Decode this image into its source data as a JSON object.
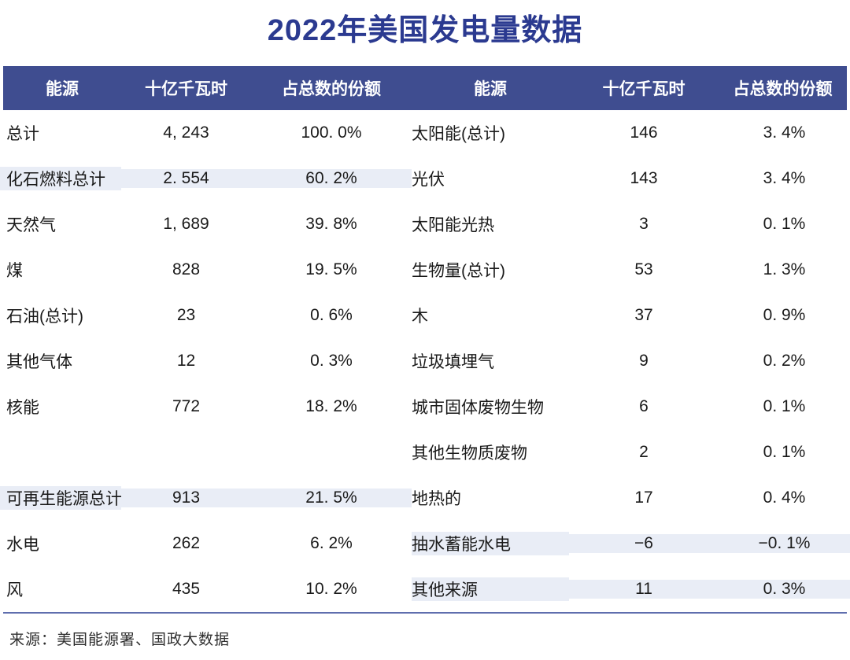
{
  "title": "2022年美国发电量数据",
  "colors": {
    "title_text": "#2b3a90",
    "header_bg": "#3f4d90",
    "header_text": "#ffffff",
    "row_highlight_bg": "#e9edf6",
    "body_text": "#1a1a1a",
    "bottom_rule": "#5f6eae"
  },
  "table": {
    "headers_left": {
      "energy": "能源",
      "value": "十亿千瓦时",
      "share": "占总数的份额"
    },
    "headers_right": {
      "energy": "能源",
      "value": "十亿千瓦时",
      "share": "占总数的份额"
    },
    "rows": [
      {
        "left": {
          "label": "总计",
          "value": "4, 243",
          "share": "100. 0%",
          "highlight": false
        },
        "right": {
          "label": "太阳能(总计)",
          "value": "146",
          "share": "3. 4%",
          "highlight": false
        }
      },
      {
        "left": {
          "label": "化石燃料总计",
          "value": "2. 554",
          "share": "60. 2%",
          "highlight": true
        },
        "right": {
          "label": "光伏",
          "value": "143",
          "share": "3. 4%",
          "highlight": false
        }
      },
      {
        "left": {
          "label": "天然气",
          "value": "1, 689",
          "share": "39. 8%",
          "highlight": false
        },
        "right": {
          "label": "太阳能光热",
          "value": "3",
          "share": "0. 1%",
          "highlight": false
        }
      },
      {
        "left": {
          "label": "煤",
          "value": "828",
          "share": "19. 5%",
          "highlight": false
        },
        "right": {
          "label": "生物量(总计)",
          "value": "53",
          "share": "1. 3%",
          "highlight": false
        }
      },
      {
        "left": {
          "label": "石油(总计)",
          "value": "23",
          "share": "0. 6%",
          "highlight": false
        },
        "right": {
          "label": "木",
          "value": "37",
          "share": "0. 9%",
          "highlight": false
        }
      },
      {
        "left": {
          "label": "其他气体",
          "value": "12",
          "share": "0. 3%",
          "highlight": false
        },
        "right": {
          "label": "垃圾填埋气",
          "value": "9",
          "share": "0. 2%",
          "highlight": false
        }
      },
      {
        "left": {
          "label": "核能",
          "value": "772",
          "share": "18. 2%",
          "highlight": false
        },
        "right": {
          "label": "城市固体废物生物",
          "value": "6",
          "share": "0. 1%",
          "highlight": false
        }
      },
      {
        "left": {
          "label": "",
          "value": "",
          "share": "",
          "highlight": false
        },
        "right": {
          "label": "其他生物质废物",
          "value": "2",
          "share": "0. 1%",
          "highlight": false
        }
      },
      {
        "left": {
          "label": "可再生能源总计",
          "value": "913",
          "share": "21. 5%",
          "highlight": true
        },
        "right": {
          "label": "地热的",
          "value": "17",
          "share": "0. 4%",
          "highlight": false
        }
      },
      {
        "left": {
          "label": "水电",
          "value": "262",
          "share": "6. 2%",
          "highlight": false
        },
        "right": {
          "label": "抽水蓄能水电",
          "value": "−6",
          "share": "−0. 1%",
          "highlight": true
        }
      },
      {
        "left": {
          "label": "风",
          "value": "435",
          "share": "10. 2%",
          "highlight": false
        },
        "right": {
          "label": "其他来源",
          "value": "11",
          "share": "0. 3%",
          "highlight": true
        }
      }
    ]
  },
  "footer": {
    "source": "来源：美国能源署、国政大数据"
  },
  "chart_data": {
    "type": "table",
    "title": "2022年美国发电量数据",
    "columns": [
      "能源",
      "十亿千瓦时",
      "占总数的份额"
    ],
    "unit": "十亿千瓦时",
    "rows": [
      {
        "energy": "总计",
        "billion_kwh": 4243,
        "share_pct": 100.0
      },
      {
        "energy": "化石燃料总计",
        "billion_kwh": 2554,
        "share_pct": 60.2
      },
      {
        "energy": "天然气",
        "billion_kwh": 1689,
        "share_pct": 39.8
      },
      {
        "energy": "煤",
        "billion_kwh": 828,
        "share_pct": 19.5
      },
      {
        "energy": "石油(总计)",
        "billion_kwh": 23,
        "share_pct": 0.6
      },
      {
        "energy": "其他气体",
        "billion_kwh": 12,
        "share_pct": 0.3
      },
      {
        "energy": "核能",
        "billion_kwh": 772,
        "share_pct": 18.2
      },
      {
        "energy": "可再生能源总计",
        "billion_kwh": 913,
        "share_pct": 21.5
      },
      {
        "energy": "水电",
        "billion_kwh": 262,
        "share_pct": 6.2
      },
      {
        "energy": "风",
        "billion_kwh": 435,
        "share_pct": 10.2
      },
      {
        "energy": "太阳能(总计)",
        "billion_kwh": 146,
        "share_pct": 3.4
      },
      {
        "energy": "光伏",
        "billion_kwh": 143,
        "share_pct": 3.4
      },
      {
        "energy": "太阳能光热",
        "billion_kwh": 3,
        "share_pct": 0.1
      },
      {
        "energy": "生物量(总计)",
        "billion_kwh": 53,
        "share_pct": 1.3
      },
      {
        "energy": "木",
        "billion_kwh": 37,
        "share_pct": 0.9
      },
      {
        "energy": "垃圾填埋气",
        "billion_kwh": 9,
        "share_pct": 0.2
      },
      {
        "energy": "城市固体废物生物",
        "billion_kwh": 6,
        "share_pct": 0.1
      },
      {
        "energy": "其他生物质废物",
        "billion_kwh": 2,
        "share_pct": 0.1
      },
      {
        "energy": "地热的",
        "billion_kwh": 17,
        "share_pct": 0.4
      },
      {
        "energy": "抽水蓄能水电",
        "billion_kwh": -6,
        "share_pct": -0.1
      },
      {
        "energy": "其他来源",
        "billion_kwh": 11,
        "share_pct": 0.3
      }
    ],
    "layout": {
      "two_column_table": true,
      "source_note": "来源：美国能源署、国政大数据"
    }
  }
}
